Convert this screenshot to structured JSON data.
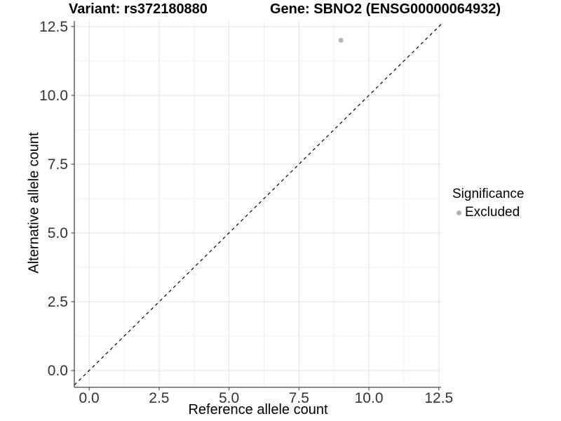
{
  "chart_data": {
    "type": "scatter",
    "title_left": "Variant: rs372180880",
    "title_right": "Gene: SBNO2 (ENSG00000064932)",
    "xlabel": "Reference allele count",
    "ylabel": "Alternative allele count",
    "x_ticks": [
      0.0,
      2.5,
      5.0,
      7.5,
      10.0,
      12.5
    ],
    "x_tick_labels": [
      "0.0",
      "2.5",
      "5.0",
      "7.5",
      "10.0",
      "12.5"
    ],
    "y_ticks": [
      0.0,
      2.5,
      5.0,
      7.5,
      10.0,
      12.5
    ],
    "y_tick_labels": [
      "0.0",
      "2.5",
      "5.0",
      "7.5",
      "10.0",
      "12.5"
    ],
    "x_minor_ticks": [
      1.25,
      3.75,
      6.25,
      8.75,
      11.25
    ],
    "y_minor_ticks": [
      1.25,
      3.75,
      6.25,
      8.75,
      11.25
    ],
    "xlim": [
      -0.53,
      12.58
    ],
    "ylim": [
      -0.61,
      12.7
    ],
    "grid": true,
    "legend_position": "right",
    "identity_line": {
      "slope": 1,
      "intercept": 0,
      "style": "dashed",
      "color": "#000000"
    },
    "points": [
      {
        "x": 9,
        "y": 12,
        "significance": "Excluded",
        "color": "#b3b3b3"
      }
    ],
    "legend": {
      "title": "Significance",
      "items": [
        {
          "label": "Excluded",
          "color": "#b3b3b3"
        }
      ]
    },
    "colors": {
      "background": "#ffffff",
      "grid_major": "#e2e2e2",
      "grid_minor": "#f0f0f0",
      "axis_line": "#474747",
      "tick_mark": "#474747",
      "tick_label": "#333333",
      "point": "#b3b3b3",
      "identity_line": "#000000"
    }
  }
}
